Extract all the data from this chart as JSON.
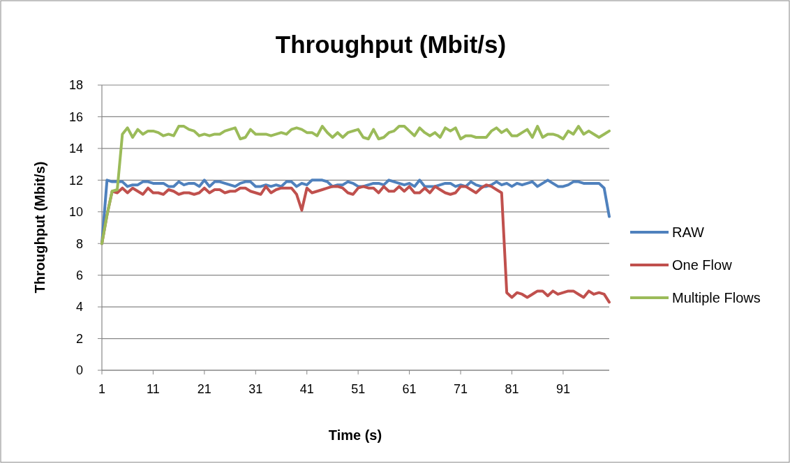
{
  "chart_data": {
    "type": "line",
    "title": "Throughput (Mbit/s)",
    "xlabel": "Time (s)",
    "ylabel": "Throughput (Mbit/s)",
    "categories": [
      "1",
      null,
      null,
      null,
      null,
      null,
      null,
      null,
      null,
      null,
      "11",
      null,
      null,
      null,
      null,
      null,
      null,
      null,
      null,
      null,
      "21",
      null,
      null,
      null,
      null,
      null,
      null,
      null,
      null,
      null,
      "31",
      null,
      null,
      null,
      null,
      null,
      null,
      null,
      null,
      null,
      "41",
      null,
      null,
      null,
      null,
      null,
      null,
      null,
      null,
      null,
      "51",
      null,
      null,
      null,
      null,
      null,
      null,
      null,
      null,
      null,
      "61",
      null,
      null,
      null,
      null,
      null,
      null,
      null,
      null,
      null,
      "71",
      null,
      null,
      null,
      null,
      null,
      null,
      null,
      null,
      null,
      "81",
      null,
      null,
      null,
      null,
      null,
      null,
      null,
      null,
      null,
      "91",
      null,
      null,
      null,
      null,
      null,
      null,
      null,
      null,
      null
    ],
    "ylim": [
      0,
      18
    ],
    "yticks": [
      0,
      2,
      4,
      6,
      8,
      10,
      12,
      14,
      16,
      18
    ],
    "grid": "y",
    "legend": "right",
    "line_style": "solid",
    "series": [
      {
        "name": "RAW",
        "color": "#4f81bd",
        "values": [
          8,
          12,
          11.9,
          11.9,
          11.9,
          11.6,
          11.7,
          11.7,
          11.9,
          11.9,
          11.8,
          11.8,
          11.8,
          11.6,
          11.6,
          11.9,
          11.7,
          11.8,
          11.8,
          11.6,
          12,
          11.6,
          11.9,
          11.9,
          11.8,
          11.7,
          11.6,
          11.8,
          11.9,
          11.9,
          11.6,
          11.6,
          11.7,
          11.6,
          11.7,
          11.6,
          11.9,
          11.9,
          11.6,
          11.8,
          11.7,
          12,
          12,
          12,
          11.9,
          11.6,
          11.7,
          11.7,
          11.9,
          11.8,
          11.6,
          11.6,
          11.7,
          11.8,
          11.8,
          11.7,
          12,
          11.9,
          11.8,
          11.7,
          11.8,
          11.6,
          12,
          11.6,
          11.6,
          11.6,
          11.7,
          11.8,
          11.8,
          11.6,
          11.7,
          11.6,
          11.9,
          11.7,
          11.6,
          11.6,
          11.7,
          11.9,
          11.7,
          11.8,
          11.6,
          11.8,
          11.7,
          11.8,
          11.9,
          11.6,
          11.8,
          12,
          11.8,
          11.6,
          11.6,
          11.7,
          11.9,
          11.9,
          11.8,
          11.8,
          11.8,
          11.8,
          11.5,
          9.7
        ]
      },
      {
        "name": "One Flow",
        "color": "#c0504d",
        "values": [
          8,
          9.8,
          11.3,
          11.2,
          11.5,
          11.2,
          11.5,
          11.3,
          11.1,
          11.5,
          11.2,
          11.2,
          11.1,
          11.4,
          11.3,
          11.1,
          11.2,
          11.2,
          11.1,
          11.2,
          11.5,
          11.2,
          11.4,
          11.4,
          11.2,
          11.3,
          11.3,
          11.5,
          11.5,
          11.3,
          11.2,
          11.1,
          11.6,
          11.2,
          11.4,
          11.5,
          11.5,
          11.5,
          11.1,
          10.1,
          11.5,
          11.2,
          11.3,
          11.4,
          11.5,
          11.6,
          11.6,
          11.5,
          11.2,
          11.1,
          11.5,
          11.6,
          11.5,
          11.5,
          11.2,
          11.6,
          11.3,
          11.3,
          11.6,
          11.3,
          11.6,
          11.2,
          11.2,
          11.5,
          11.2,
          11.6,
          11.4,
          11.2,
          11.1,
          11.2,
          11.6,
          11.6,
          11.4,
          11.2,
          11.5,
          11.7,
          11.6,
          11.4,
          11.2,
          4.9,
          4.6,
          4.9,
          4.8,
          4.6,
          4.8,
          5,
          5,
          4.7,
          5,
          4.8,
          4.9,
          5,
          5,
          4.8,
          4.6,
          5,
          4.8,
          4.9,
          4.8,
          4.3
        ]
      },
      {
        "name": "Multiple Flows",
        "color": "#9bbb59",
        "values": [
          8,
          9.8,
          11.3,
          11.4,
          14.9,
          15.3,
          14.7,
          15.2,
          14.9,
          15.1,
          15.1,
          15,
          14.8,
          14.9,
          14.8,
          15.4,
          15.4,
          15.2,
          15.1,
          14.8,
          14.9,
          14.8,
          14.9,
          14.9,
          15.1,
          15.2,
          15.3,
          14.6,
          14.7,
          15.2,
          14.9,
          14.9,
          14.9,
          14.8,
          14.9,
          15,
          14.9,
          15.2,
          15.3,
          15.2,
          15,
          15,
          14.8,
          15.4,
          15,
          14.7,
          15,
          14.7,
          15,
          15.1,
          15.2,
          14.7,
          14.6,
          15.2,
          14.6,
          14.7,
          15,
          15.1,
          15.4,
          15.4,
          15.1,
          14.8,
          15.3,
          15,
          14.8,
          15,
          14.7,
          15.3,
          15.1,
          15.3,
          14.6,
          14.8,
          14.8,
          14.7,
          14.7,
          14.7,
          15.1,
          15.3,
          15,
          15.2,
          14.8,
          14.8,
          15,
          15.2,
          14.7,
          15.4,
          14.7,
          14.9,
          14.9,
          14.8,
          14.6,
          15.1,
          14.9,
          15.4,
          14.9,
          15.1,
          14.9,
          14.7,
          14.9,
          15.1
        ]
      }
    ]
  }
}
